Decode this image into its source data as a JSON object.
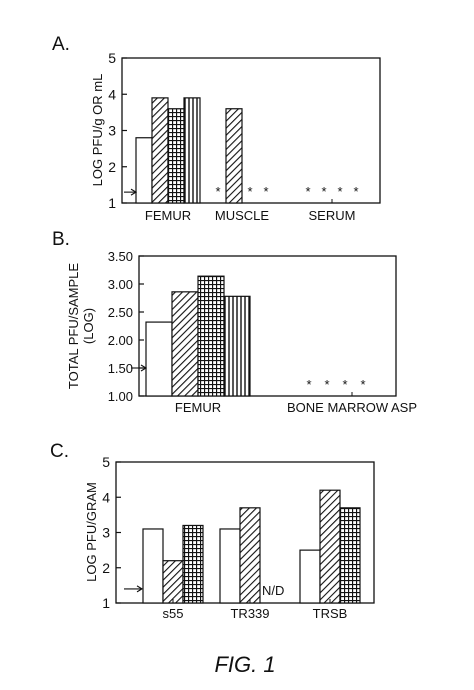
{
  "figure_caption": "FIG. 1",
  "chart_data": [
    {
      "type": "bar",
      "panel": "A.",
      "ylabel": "LOG PFU/g OR mL",
      "ylim": [
        1,
        5
      ],
      "yticks": [
        "1",
        "2",
        "3",
        "4",
        "5"
      ],
      "categories": [
        "FEMUR",
        "MUSCLE",
        "SERUM"
      ],
      "patterns": [
        "open",
        "hatch",
        "grid",
        "vlines"
      ],
      "series": [
        {
          "values": [
            2.8,
            null,
            null
          ]
        },
        {
          "values": [
            3.9,
            3.6,
            null
          ]
        },
        {
          "values": [
            3.6,
            null,
            null
          ]
        },
        {
          "values": [
            3.9,
            null,
            null
          ]
        }
      ],
      "star_markers": {
        "MUSCLE": [
          0,
          2,
          3
        ],
        "SERUM": [
          0,
          1,
          2,
          3
        ]
      },
      "star_symbol": "*",
      "detection_limit": 1.3
    },
    {
      "type": "bar",
      "panel": "B.",
      "ylabel": [
        "TOTAL PFU/SAMPLE",
        "(LOG)"
      ],
      "ylim": [
        1.0,
        3.5
      ],
      "yticks": [
        "1.00",
        "1.50",
        "2.00",
        "2.50",
        "3.00",
        "3.50"
      ],
      "categories": [
        "FEMUR",
        "BONE MARROW ASP"
      ],
      "patterns": [
        "open",
        "hatch",
        "grid",
        "vlines"
      ],
      "series": [
        {
          "values": [
            2.32,
            null
          ]
        },
        {
          "values": [
            2.86,
            null
          ]
        },
        {
          "values": [
            3.14,
            null
          ]
        },
        {
          "values": [
            2.78,
            null
          ]
        }
      ],
      "star_markers": {
        "BONE MARROW ASP": [
          0,
          1,
          2,
          3
        ]
      },
      "star_symbol": "*",
      "detection_limit": 1.5
    },
    {
      "type": "bar",
      "panel": "C.",
      "ylabel": "LOG PFU/GRAM",
      "ylim": [
        1,
        5
      ],
      "yticks": [
        "1",
        "2",
        "3",
        "4",
        "5"
      ],
      "categories": [
        "s55",
        "TR339",
        "TRSB"
      ],
      "patterns": [
        "open",
        "hatch",
        "grid"
      ],
      "series": [
        {
          "values": [
            3.1,
            3.1,
            2.5
          ]
        },
        {
          "values": [
            2.2,
            3.7,
            4.2
          ]
        },
        {
          "values": [
            3.2,
            null,
            3.7
          ]
        }
      ],
      "annotation": {
        "text": "N/D",
        "category": "TR339",
        "series": 2
      },
      "detection_limit": 1.4
    }
  ]
}
